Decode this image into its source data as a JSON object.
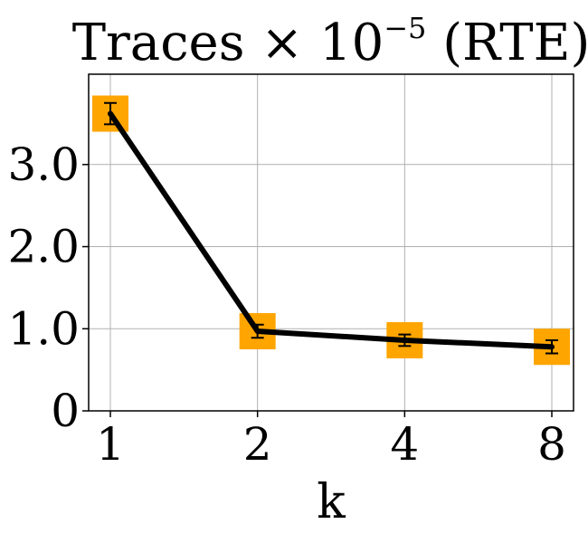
{
  "chart_data": {
    "type": "line",
    "title_main": "Traces × 10",
    "title_exponent": "−5",
    "title_suffix": " (RTE)",
    "xlabel": "k",
    "ylabel": "",
    "categories": [
      "1",
      "2",
      "4",
      "8"
    ],
    "y_ticks": [
      {
        "value": 0,
        "label": "0"
      },
      {
        "value": 1,
        "label": "1.0"
      },
      {
        "value": 2,
        "label": "2.0"
      },
      {
        "value": 3,
        "label": "3.0"
      }
    ],
    "ylim": [
      0,
      4.1
    ],
    "grid": true,
    "series": [
      {
        "values": [
          3.62,
          0.97,
          0.86,
          0.78
        ],
        "errors": [
          0.13,
          0.08,
          0.07,
          0.08
        ],
        "line_color": "#000000",
        "marker_color": "#ffa500",
        "marker": "square"
      }
    ]
  }
}
